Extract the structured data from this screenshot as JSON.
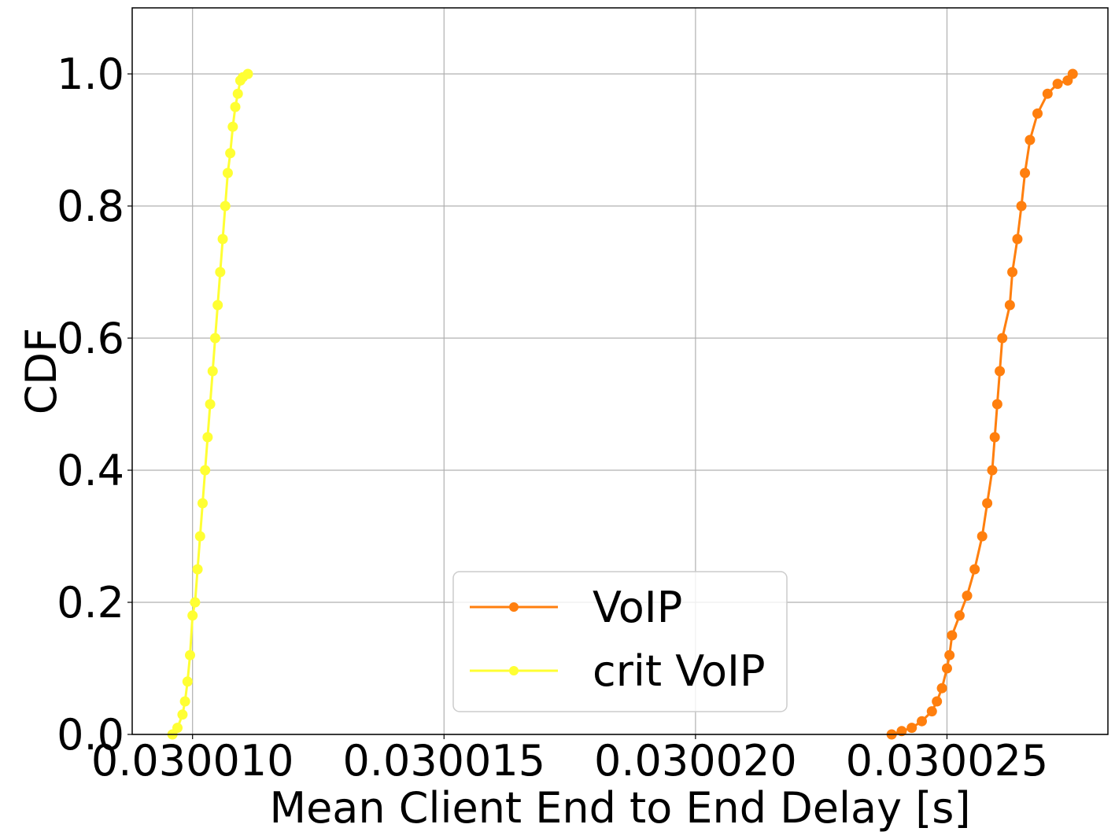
{
  "chart_data": {
    "type": "line",
    "title": "",
    "xlabel": "Mean Client End to End Delay [s]",
    "ylabel": "CDF",
    "xlim": [
      0.0300088,
      0.0300282
    ],
    "ylim": [
      0.0,
      1.1
    ],
    "xticks": [
      {
        "value": 0.03001,
        "label": "0.030010"
      },
      {
        "value": 0.030015,
        "label": "0.030015"
      },
      {
        "value": 0.03002,
        "label": "0.030020"
      },
      {
        "value": 0.030025,
        "label": "0.030025"
      }
    ],
    "yticks": [
      {
        "value": 0.0,
        "label": "0.0"
      },
      {
        "value": 0.2,
        "label": "0.2"
      },
      {
        "value": 0.4,
        "label": "0.4"
      },
      {
        "value": 0.6,
        "label": "0.6"
      },
      {
        "value": 0.8,
        "label": "0.8"
      },
      {
        "value": 1.0,
        "label": "1.0"
      }
    ],
    "grid": true,
    "legend": "lower center",
    "series": [
      {
        "name": "VoIP",
        "color": "#ff7f0e",
        "points": [
          [
            0.0300239,
            0.0
          ],
          [
            0.0300241,
            0.005
          ],
          [
            0.0300243,
            0.01
          ],
          [
            0.0300245,
            0.02
          ],
          [
            0.0300247,
            0.035
          ],
          [
            0.0300248,
            0.05
          ],
          [
            0.0300249,
            0.07
          ],
          [
            0.030025,
            0.1
          ],
          [
            0.03002505,
            0.12
          ],
          [
            0.0300251,
            0.15
          ],
          [
            0.03002525,
            0.18
          ],
          [
            0.0300254,
            0.21
          ],
          [
            0.03002555,
            0.25
          ],
          [
            0.0300257,
            0.3
          ],
          [
            0.0300258,
            0.35
          ],
          [
            0.0300259,
            0.4
          ],
          [
            0.03002595,
            0.45
          ],
          [
            0.030026,
            0.5
          ],
          [
            0.03002605,
            0.55
          ],
          [
            0.0300261,
            0.6
          ],
          [
            0.03002625,
            0.65
          ],
          [
            0.0300263,
            0.7
          ],
          [
            0.0300264,
            0.75
          ],
          [
            0.03002648,
            0.8
          ],
          [
            0.03002655,
            0.85
          ],
          [
            0.03002665,
            0.9
          ],
          [
            0.0300268,
            0.94
          ],
          [
            0.030027,
            0.97
          ],
          [
            0.0300272,
            0.985
          ],
          [
            0.0300274,
            0.99
          ],
          [
            0.0300275,
            1.0
          ]
        ]
      },
      {
        "name": "crit VoIP",
        "color": "#ffff33",
        "points": [
          [
            0.0300096,
            0.0
          ],
          [
            0.0300097,
            0.01
          ],
          [
            0.0300098,
            0.03
          ],
          [
            0.03000985,
            0.05
          ],
          [
            0.0300099,
            0.08
          ],
          [
            0.03000995,
            0.12
          ],
          [
            0.03001,
            0.18
          ],
          [
            0.03001005,
            0.2
          ],
          [
            0.0300101,
            0.25
          ],
          [
            0.03001015,
            0.3
          ],
          [
            0.0300102,
            0.35
          ],
          [
            0.03001025,
            0.4
          ],
          [
            0.0300103,
            0.45
          ],
          [
            0.03001035,
            0.5
          ],
          [
            0.0300104,
            0.55
          ],
          [
            0.03001045,
            0.6
          ],
          [
            0.0300105,
            0.65
          ],
          [
            0.03001055,
            0.7
          ],
          [
            0.0300106,
            0.75
          ],
          [
            0.03001065,
            0.8
          ],
          [
            0.0300107,
            0.85
          ],
          [
            0.03001075,
            0.88
          ],
          [
            0.0300108,
            0.92
          ],
          [
            0.03001085,
            0.95
          ],
          [
            0.0300109,
            0.97
          ],
          [
            0.03001095,
            0.99
          ],
          [
            0.030011,
            0.995
          ],
          [
            0.0300111,
            1.0
          ]
        ]
      }
    ]
  }
}
